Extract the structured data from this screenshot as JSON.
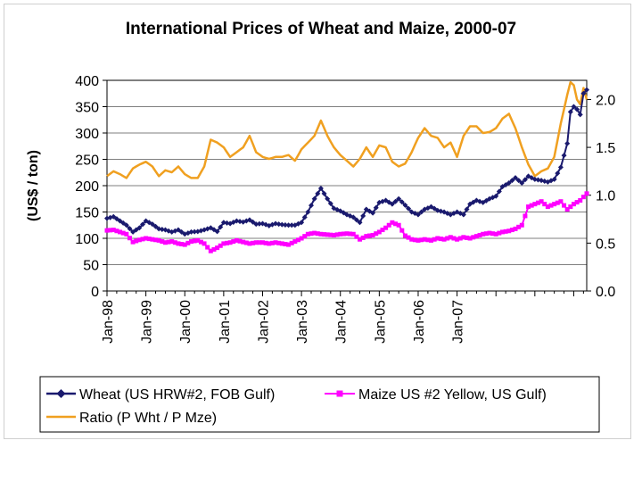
{
  "chart_data": {
    "type": "line",
    "title": "International Prices of Wheat and Maize, 2000-07",
    "ylabel": "(US$ / ton)",
    "ylim": [
      0,
      400
    ],
    "y_ticks": [
      "400",
      "350",
      "300",
      "250",
      "200",
      "150",
      "100",
      "50",
      "0"
    ],
    "y2lim": [
      0,
      2.2
    ],
    "y2_ticks": [
      "2.0",
      "1.5",
      "1.0",
      "0.5",
      "0.0"
    ],
    "x_tick_labels": [
      "Jan-98",
      "Jan-99",
      "Jan-00",
      "Jan-01",
      "Jan-02",
      "Jan-03",
      "Jan-04",
      "Jan-05",
      "Jan-06",
      "Jan-07"
    ],
    "x_start": "Jan-98",
    "x_end": "Dec-07",
    "series": [
      {
        "name": "Wheat (US HRW#2, FOB Gulf)",
        "axis": "left",
        "color": "#1a1a6e",
        "marker": "diamond",
        "anchors": [
          [
            0,
            138
          ],
          [
            2,
            141
          ],
          [
            4,
            133
          ],
          [
            6,
            125
          ],
          [
            8,
            112
          ],
          [
            10,
            120
          ],
          [
            12,
            133
          ],
          [
            14,
            127
          ],
          [
            16,
            118
          ],
          [
            18,
            116
          ],
          [
            20,
            112
          ],
          [
            22,
            116
          ],
          [
            24,
            108
          ],
          [
            26,
            112
          ],
          [
            28,
            113
          ],
          [
            30,
            116
          ],
          [
            32,
            120
          ],
          [
            34,
            113
          ],
          [
            36,
            130
          ],
          [
            38,
            128
          ],
          [
            40,
            133
          ],
          [
            42,
            131
          ],
          [
            44,
            135
          ],
          [
            46,
            127
          ],
          [
            48,
            128
          ],
          [
            50,
            124
          ],
          [
            52,
            128
          ],
          [
            54,
            126
          ],
          [
            56,
            125
          ],
          [
            58,
            125
          ],
          [
            60,
            130
          ],
          [
            62,
            150
          ],
          [
            64,
            175
          ],
          [
            66,
            195
          ],
          [
            68,
            175
          ],
          [
            70,
            157
          ],
          [
            72,
            152
          ],
          [
            74,
            145
          ],
          [
            76,
            140
          ],
          [
            78,
            130
          ],
          [
            80,
            155
          ],
          [
            82,
            148
          ],
          [
            84,
            168
          ],
          [
            86,
            172
          ],
          [
            88,
            165
          ],
          [
            90,
            175
          ],
          [
            92,
            163
          ],
          [
            94,
            150
          ],
          [
            96,
            145
          ],
          [
            98,
            155
          ],
          [
            100,
            160
          ],
          [
            102,
            153
          ],
          [
            104,
            150
          ],
          [
            106,
            145
          ],
          [
            108,
            150
          ],
          [
            110,
            145
          ],
          [
            112,
            165
          ],
          [
            114,
            172
          ],
          [
            116,
            168
          ],
          [
            118,
            175
          ],
          [
            120,
            180
          ],
          [
            122,
            198
          ],
          [
            124,
            205
          ],
          [
            126,
            215
          ],
          [
            128,
            205
          ],
          [
            130,
            218
          ],
          [
            132,
            212
          ],
          [
            134,
            210
          ],
          [
            136,
            207
          ],
          [
            138,
            212
          ],
          [
            140,
            235
          ],
          [
            142,
            280
          ],
          [
            143,
            340
          ],
          [
            144,
            350
          ],
          [
            145,
            345
          ],
          [
            146,
            335
          ],
          [
            147,
            375
          ],
          [
            148,
            382
          ]
        ]
      },
      {
        "name": "Maize US #2 Yellow, US Gulf)",
        "axis": "left",
        "color": "#ff00ff",
        "marker": "square",
        "anchors": [
          [
            0,
            115
          ],
          [
            2,
            116
          ],
          [
            4,
            112
          ],
          [
            6,
            108
          ],
          [
            8,
            93
          ],
          [
            10,
            97
          ],
          [
            12,
            100
          ],
          [
            14,
            98
          ],
          [
            16,
            96
          ],
          [
            18,
            92
          ],
          [
            20,
            94
          ],
          [
            22,
            90
          ],
          [
            24,
            88
          ],
          [
            26,
            94
          ],
          [
            28,
            96
          ],
          [
            30,
            90
          ],
          [
            32,
            76
          ],
          [
            34,
            82
          ],
          [
            36,
            90
          ],
          [
            38,
            92
          ],
          [
            40,
            96
          ],
          [
            42,
            93
          ],
          [
            44,
            90
          ],
          [
            46,
            92
          ],
          [
            48,
            92
          ],
          [
            50,
            90
          ],
          [
            52,
            92
          ],
          [
            54,
            90
          ],
          [
            56,
            88
          ],
          [
            58,
            94
          ],
          [
            60,
            100
          ],
          [
            62,
            108
          ],
          [
            64,
            110
          ],
          [
            66,
            108
          ],
          [
            68,
            107
          ],
          [
            70,
            106
          ],
          [
            72,
            108
          ],
          [
            74,
            109
          ],
          [
            76,
            108
          ],
          [
            78,
            98
          ],
          [
            80,
            104
          ],
          [
            82,
            106
          ],
          [
            84,
            112
          ],
          [
            86,
            120
          ],
          [
            88,
            130
          ],
          [
            90,
            125
          ],
          [
            92,
            105
          ],
          [
            94,
            98
          ],
          [
            96,
            96
          ],
          [
            98,
            98
          ],
          [
            100,
            96
          ],
          [
            102,
            100
          ],
          [
            104,
            98
          ],
          [
            106,
            102
          ],
          [
            108,
            98
          ],
          [
            110,
            102
          ],
          [
            112,
            100
          ],
          [
            114,
            104
          ],
          [
            116,
            108
          ],
          [
            118,
            110
          ],
          [
            120,
            108
          ],
          [
            122,
            112
          ],
          [
            124,
            114
          ],
          [
            126,
            118
          ],
          [
            128,
            125
          ],
          [
            130,
            160
          ],
          [
            132,
            165
          ],
          [
            134,
            170
          ],
          [
            136,
            160
          ],
          [
            138,
            165
          ],
          [
            140,
            170
          ],
          [
            142,
            155
          ],
          [
            144,
            165
          ],
          [
            146,
            172
          ],
          [
            148,
            185
          ]
        ]
      },
      {
        "name": "Ratio (P Wht / P Mze)",
        "axis": "right",
        "color": "#f0a020",
        "marker": "none",
        "anchors": [
          [
            0,
            1.2
          ],
          [
            2,
            1.25
          ],
          [
            4,
            1.22
          ],
          [
            6,
            1.18
          ],
          [
            8,
            1.28
          ],
          [
            10,
            1.32
          ],
          [
            12,
            1.35
          ],
          [
            14,
            1.3
          ],
          [
            16,
            1.2
          ],
          [
            18,
            1.26
          ],
          [
            20,
            1.24
          ],
          [
            22,
            1.3
          ],
          [
            24,
            1.22
          ],
          [
            26,
            1.18
          ],
          [
            28,
            1.18
          ],
          [
            30,
            1.3
          ],
          [
            32,
            1.58
          ],
          [
            34,
            1.55
          ],
          [
            36,
            1.5
          ],
          [
            38,
            1.4
          ],
          [
            40,
            1.45
          ],
          [
            42,
            1.5
          ],
          [
            44,
            1.62
          ],
          [
            46,
            1.45
          ],
          [
            48,
            1.4
          ],
          [
            50,
            1.38
          ],
          [
            52,
            1.4
          ],
          [
            54,
            1.4
          ],
          [
            56,
            1.42
          ],
          [
            58,
            1.36
          ],
          [
            60,
            1.48
          ],
          [
            62,
            1.55
          ],
          [
            64,
            1.62
          ],
          [
            66,
            1.78
          ],
          [
            68,
            1.62
          ],
          [
            70,
            1.5
          ],
          [
            72,
            1.42
          ],
          [
            74,
            1.36
          ],
          [
            76,
            1.3
          ],
          [
            78,
            1.38
          ],
          [
            80,
            1.5
          ],
          [
            82,
            1.4
          ],
          [
            84,
            1.52
          ],
          [
            86,
            1.5
          ],
          [
            88,
            1.35
          ],
          [
            90,
            1.3
          ],
          [
            92,
            1.33
          ],
          [
            94,
            1.45
          ],
          [
            96,
            1.6
          ],
          [
            98,
            1.7
          ],
          [
            100,
            1.62
          ],
          [
            102,
            1.6
          ],
          [
            104,
            1.5
          ],
          [
            106,
            1.55
          ],
          [
            108,
            1.4
          ],
          [
            110,
            1.62
          ],
          [
            112,
            1.72
          ],
          [
            114,
            1.72
          ],
          [
            116,
            1.65
          ],
          [
            118,
            1.66
          ],
          [
            120,
            1.7
          ],
          [
            122,
            1.8
          ],
          [
            124,
            1.85
          ],
          [
            126,
            1.7
          ],
          [
            128,
            1.5
          ],
          [
            130,
            1.32
          ],
          [
            132,
            1.2
          ],
          [
            134,
            1.25
          ],
          [
            136,
            1.28
          ],
          [
            138,
            1.4
          ],
          [
            140,
            1.75
          ],
          [
            142,
            2.05
          ],
          [
            143,
            2.18
          ],
          [
            144,
            2.15
          ],
          [
            145,
            2.0
          ],
          [
            146,
            1.95
          ],
          [
            147,
            2.12
          ],
          [
            148,
            2.0
          ]
        ]
      }
    ],
    "legend": {
      "position": "bottom",
      "entries": [
        "Wheat (US HRW#2, FOB Gulf)",
        "Maize US #2 Yellow, US Gulf)",
        "Ratio (P Wht / P Mze)"
      ]
    }
  }
}
